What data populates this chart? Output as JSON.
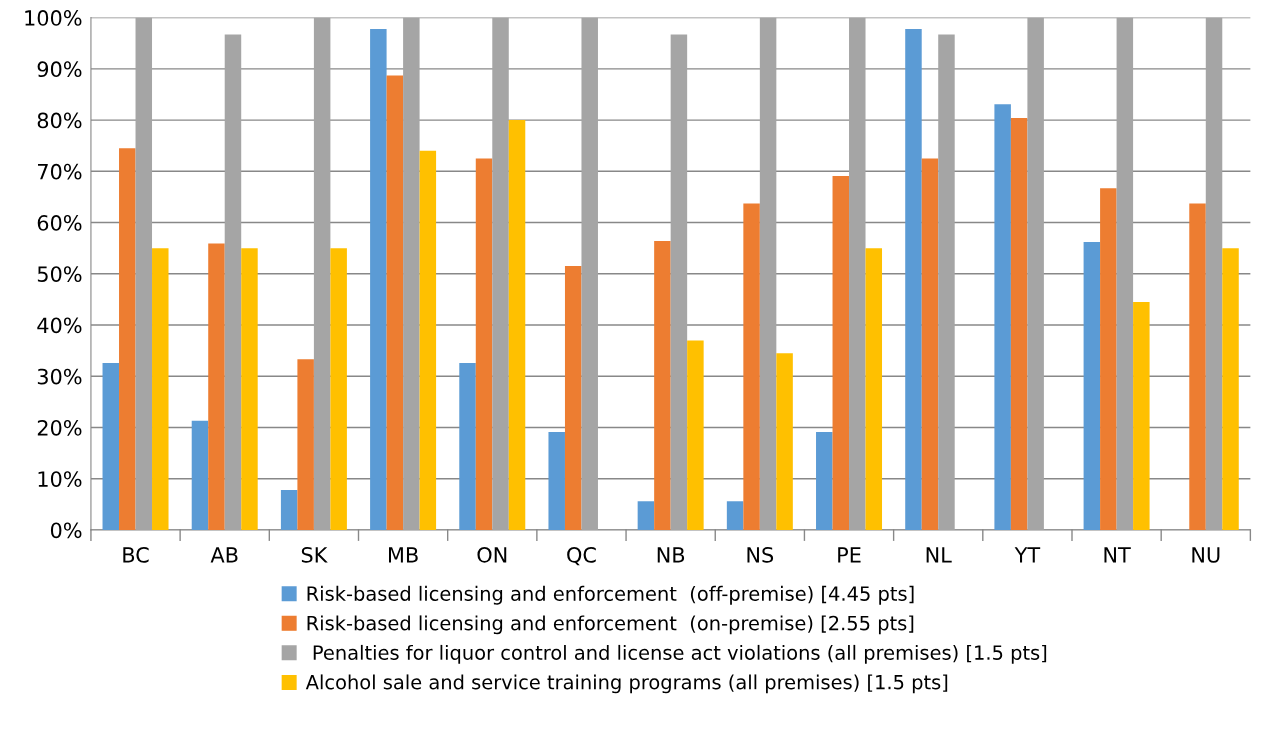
{
  "chart_data": {
    "type": "bar",
    "categories": [
      "BC",
      "AB",
      "SK",
      "MB",
      "ON",
      "QC",
      "NB",
      "NS",
      "PE",
      "NL",
      "YT",
      "NT",
      "NU"
    ],
    "series": [
      {
        "name": "Risk-based licensing and enforcement  (off-premise) [4.45 pts]",
        "color": "#5b9bd5",
        "values": [
          32.6,
          21.3,
          7.8,
          97.8,
          32.6,
          19.1,
          5.6,
          5.6,
          19.1,
          97.8,
          83.1,
          56.2,
          0
        ]
      },
      {
        "name": "Risk-based licensing and enforcement  (on-premise) [2.55 pts]",
        "color": "#ed7d31",
        "values": [
          74.5,
          55.9,
          33.3,
          88.7,
          72.5,
          51.5,
          56.4,
          63.7,
          69.1,
          72.5,
          80.4,
          66.7,
          63.7
        ]
      },
      {
        "name": " Penalties for liquor control and license act violations (all premises) [1.5 pts]",
        "color": "#a5a5a5",
        "values": [
          100,
          96.7,
          100,
          100,
          100,
          100,
          96.7,
          100,
          100,
          96.7,
          100,
          100,
          100
        ]
      },
      {
        "name": "Alcohol sale and service training programs (all premises) [1.5 pts]",
        "color": "#ffc000",
        "values": [
          55,
          55,
          55,
          74,
          80,
          0,
          37,
          34.5,
          55,
          0,
          0,
          44.5,
          55
        ]
      }
    ],
    "ylim": [
      0,
      100
    ],
    "yticks": [
      {
        "value": 0,
        "label": "0%"
      },
      {
        "value": 10,
        "label": "10%"
      },
      {
        "value": 20,
        "label": "20%"
      },
      {
        "value": 30,
        "label": "30%"
      },
      {
        "value": 40,
        "label": "40%"
      },
      {
        "value": 50,
        "label": "50%"
      },
      {
        "value": 60,
        "label": "60%"
      },
      {
        "value": 70,
        "label": "70%"
      },
      {
        "value": 80,
        "label": "80%"
      },
      {
        "value": 90,
        "label": "90%"
      },
      {
        "value": 100,
        "label": "100%"
      }
    ],
    "grid": "y",
    "legend": "bottom"
  }
}
